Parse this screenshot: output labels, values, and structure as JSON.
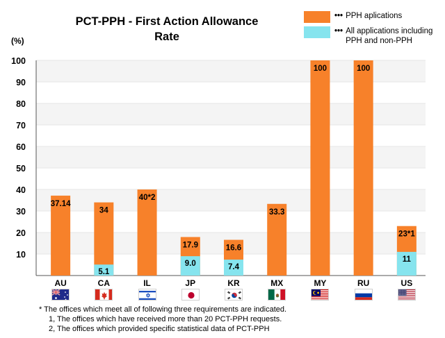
{
  "chart_data": {
    "type": "bar",
    "title": "PCT-PPH - First Action Allowance Rate",
    "ylabel": "(%)",
    "ylim": [
      0,
      100
    ],
    "yticks": [
      "10",
      "20",
      "30",
      "40",
      "50",
      "60",
      "70",
      "80",
      "90",
      "100"
    ],
    "categories": [
      "AU",
      "CA",
      "IL",
      "JP",
      "KR",
      "MX",
      "MY",
      "RU",
      "US"
    ],
    "series": [
      {
        "name": "PPH aplications",
        "color": "#f7812a",
        "values": [
          37.14,
          34,
          40,
          17.9,
          16.6,
          33.3,
          100,
          100,
          23
        ],
        "labels": [
          "37.14",
          "34",
          "40*2",
          "17.9",
          "16.6",
          "33.3",
          "100",
          "100",
          "23*1"
        ]
      },
      {
        "name": "All applications including PPH and non-PPH",
        "color": "#86e4ee",
        "values": [
          null,
          5.1,
          null,
          9.0,
          7.4,
          null,
          null,
          null,
          11
        ],
        "labels": [
          null,
          "5.1",
          null,
          "9.0",
          "7.4",
          null,
          null,
          null,
          "11"
        ]
      }
    ]
  },
  "legend": {
    "pph_label": "PPH aplications",
    "all_label": "All applications including PPH and non-PPH",
    "dots": "•••"
  },
  "footnotes": {
    "line1": "* The offices which meet all of following three requirements are indicated.",
    "line2": "1, The offices which have received more than 20 PCT-PPH requests.",
    "line3": "2, The offices which provided specific statistical data of PCT-PPH"
  },
  "flags": {
    "AU": "australia-flag",
    "CA": "canada-flag",
    "IL": "israel-flag",
    "JP": "japan-flag",
    "KR": "korea-flag",
    "MX": "mexico-flag",
    "MY": "malaysia-flag",
    "RU": "russia-flag",
    "US": "usa-flag"
  }
}
